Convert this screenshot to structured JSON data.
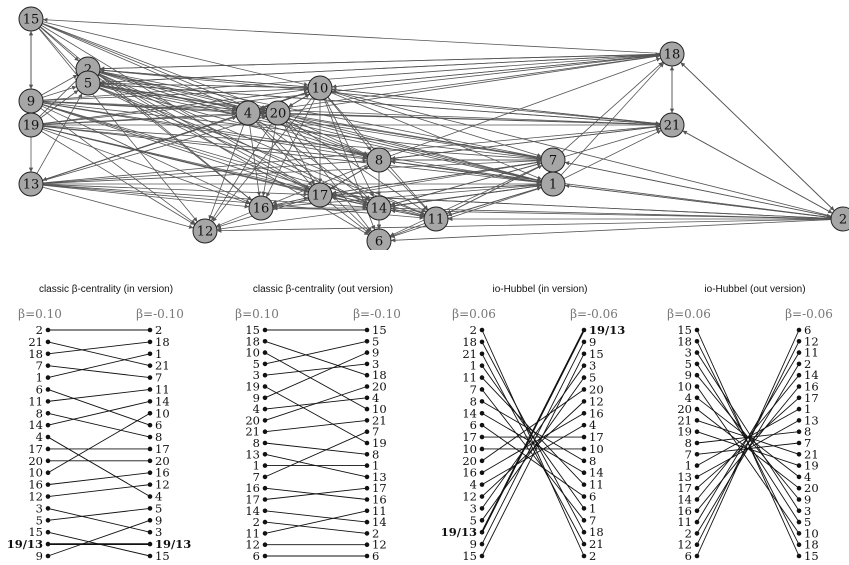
{
  "network": {
    "nodes": [
      "15",
      "2",
      "5",
      "9",
      "19",
      "13",
      "4",
      "20",
      "10",
      "12",
      "16",
      "17",
      "8",
      "14",
      "6",
      "11",
      "7",
      "1",
      "18",
      "21"
    ],
    "edges": [
      [
        "18",
        "15"
      ],
      [
        "15",
        "2"
      ],
      [
        "15",
        "5"
      ],
      [
        "15",
        "9"
      ],
      [
        "9",
        "15"
      ],
      [
        "15",
        "19"
      ],
      [
        "15",
        "4"
      ],
      [
        "15",
        "20"
      ],
      [
        "15",
        "10"
      ],
      [
        "15",
        "8"
      ],
      [
        "15",
        "17"
      ],
      [
        "15",
        "16"
      ],
      [
        "15",
        "12"
      ],
      [
        "2",
        "10"
      ],
      [
        "2",
        "4"
      ],
      [
        "2",
        "20"
      ],
      [
        "2",
        "18"
      ],
      [
        "2",
        "21"
      ],
      [
        "2",
        "8"
      ],
      [
        "2",
        "7"
      ],
      [
        "2",
        "1"
      ],
      [
        "2",
        "17"
      ],
      [
        "2",
        "16"
      ],
      [
        "2",
        "14"
      ],
      [
        "2",
        "11"
      ],
      [
        "2",
        "6"
      ],
      [
        "5",
        "10"
      ],
      [
        "5",
        "20"
      ],
      [
        "5",
        "4"
      ],
      [
        "5",
        "8"
      ],
      [
        "5",
        "7"
      ],
      [
        "5",
        "1"
      ],
      [
        "5",
        "17"
      ],
      [
        "5",
        "14"
      ],
      [
        "5",
        "11"
      ],
      [
        "5",
        "18"
      ],
      [
        "5",
        "21"
      ],
      [
        "5",
        "2"
      ],
      [
        "2",
        "5"
      ],
      [
        "9",
        "2"
      ],
      [
        "9",
        "5"
      ],
      [
        "9",
        "10"
      ],
      [
        "9",
        "4"
      ],
      [
        "9",
        "20"
      ],
      [
        "9",
        "18"
      ],
      [
        "9",
        "21"
      ],
      [
        "9",
        "8"
      ],
      [
        "9",
        "7"
      ],
      [
        "9",
        "1"
      ],
      [
        "9",
        "17"
      ],
      [
        "9",
        "16"
      ],
      [
        "9",
        "12"
      ],
      [
        "9",
        "14"
      ],
      [
        "9",
        "11"
      ],
      [
        "19",
        "5"
      ],
      [
        "19",
        "2"
      ],
      [
        "19",
        "10"
      ],
      [
        "19",
        "4"
      ],
      [
        "19",
        "20"
      ],
      [
        "19",
        "18"
      ],
      [
        "19",
        "21"
      ],
      [
        "19",
        "8"
      ],
      [
        "19",
        "7"
      ],
      [
        "19",
        "1"
      ],
      [
        "19",
        "17"
      ],
      [
        "19",
        "16"
      ],
      [
        "19",
        "12"
      ],
      [
        "19",
        "13"
      ],
      [
        "19",
        "14"
      ],
      [
        "19",
        "11"
      ],
      [
        "13",
        "5"
      ],
      [
        "13",
        "10"
      ],
      [
        "13",
        "4"
      ],
      [
        "13",
        "20"
      ],
      [
        "13",
        "8"
      ],
      [
        "13",
        "17"
      ],
      [
        "13",
        "16"
      ],
      [
        "13",
        "12"
      ],
      [
        "13",
        "14"
      ],
      [
        "13",
        "11"
      ],
      [
        "13",
        "1"
      ],
      [
        "13",
        "7"
      ],
      [
        "13",
        "21"
      ],
      [
        "4",
        "20"
      ],
      [
        "20",
        "4"
      ],
      [
        "4",
        "10"
      ],
      [
        "4",
        "16"
      ],
      [
        "4",
        "17"
      ],
      [
        "4",
        "12"
      ],
      [
        "4",
        "14"
      ],
      [
        "4",
        "8"
      ],
      [
        "4",
        "18"
      ],
      [
        "4",
        "21"
      ],
      [
        "4",
        "7"
      ],
      [
        "4",
        "1"
      ],
      [
        "4",
        "6"
      ],
      [
        "20",
        "10"
      ],
      [
        "20",
        "16"
      ],
      [
        "20",
        "17"
      ],
      [
        "20",
        "12"
      ],
      [
        "20",
        "14"
      ],
      [
        "20",
        "8"
      ],
      [
        "20",
        "18"
      ],
      [
        "20",
        "21"
      ],
      [
        "20",
        "7"
      ],
      [
        "20",
        "1"
      ],
      [
        "20",
        "6"
      ],
      [
        "20",
        "11"
      ],
      [
        "10",
        "20"
      ],
      [
        "10",
        "4"
      ],
      [
        "10",
        "8"
      ],
      [
        "10",
        "17"
      ],
      [
        "10",
        "16"
      ],
      [
        "10",
        "12"
      ],
      [
        "10",
        "14"
      ],
      [
        "10",
        "6"
      ],
      [
        "10",
        "11"
      ],
      [
        "10",
        "18"
      ],
      [
        "10",
        "21"
      ],
      [
        "10",
        "7"
      ],
      [
        "10",
        "1"
      ],
      [
        "10",
        "2"
      ],
      [
        "10",
        "5"
      ],
      [
        "10",
        "13"
      ],
      [
        "8",
        "17"
      ],
      [
        "8",
        "14"
      ],
      [
        "8",
        "6"
      ],
      [
        "8",
        "11"
      ],
      [
        "8",
        "16"
      ],
      [
        "8",
        "7"
      ],
      [
        "8",
        "1"
      ],
      [
        "8",
        "21"
      ],
      [
        "8",
        "18"
      ],
      [
        "7",
        "8"
      ],
      [
        "1",
        "8"
      ],
      [
        "7",
        "17"
      ],
      [
        "7",
        "14"
      ],
      [
        "7",
        "6"
      ],
      [
        "7",
        "11"
      ],
      [
        "7",
        "16"
      ],
      [
        "7",
        "21"
      ],
      [
        "7",
        "18"
      ],
      [
        "7",
        "1"
      ],
      [
        "1",
        "7"
      ],
      [
        "1",
        "17"
      ],
      [
        "1",
        "14"
      ],
      [
        "1",
        "6"
      ],
      [
        "1",
        "11"
      ],
      [
        "1",
        "16"
      ],
      [
        "1",
        "21"
      ],
      [
        "1",
        "18"
      ],
      [
        "1",
        "12"
      ],
      [
        "17",
        "14"
      ],
      [
        "17",
        "6"
      ],
      [
        "17",
        "12"
      ],
      [
        "17",
        "16"
      ],
      [
        "17",
        "8"
      ],
      [
        "17",
        "7"
      ],
      [
        "17",
        "1"
      ],
      [
        "14",
        "6"
      ],
      [
        "14",
        "11"
      ],
      [
        "14",
        "17"
      ],
      [
        "14",
        "7"
      ],
      [
        "14",
        "1"
      ],
      [
        "16",
        "17"
      ],
      [
        "16",
        "12"
      ],
      [
        "16",
        "14"
      ],
      [
        "11",
        "6"
      ],
      [
        "11",
        "14"
      ],
      [
        "11",
        "7"
      ],
      [
        "11",
        "1"
      ],
      [
        "18",
        "21"
      ],
      [
        "21",
        "18"
      ],
      [
        "18",
        "10"
      ],
      [
        "18",
        "5"
      ],
      [
        "18",
        "2"
      ],
      [
        "21",
        "10"
      ],
      [
        "21",
        "5"
      ],
      [
        "21",
        "8"
      ],
      [
        "2 ",
        "21"
      ],
      [
        "2 ",
        "18"
      ],
      [
        "2 ",
        "7"
      ],
      [
        "2 ",
        "1"
      ],
      [
        "2 ",
        "8"
      ],
      [
        "2 ",
        "17"
      ],
      [
        "2 ",
        "14"
      ],
      [
        "2 ",
        "11"
      ],
      [
        "2 ",
        "6"
      ],
      [
        "2 ",
        "16"
      ],
      [
        "2 ",
        "12"
      ],
      [
        "2 ",
        "10"
      ],
      [
        "18",
        "2 "
      ],
      [
        "21",
        "2 "
      ],
      [
        "1",
        "2 "
      ],
      [
        "7",
        "2 "
      ],
      [
        "17",
        "2 "
      ]
    ]
  },
  "rankings": [
    {
      "title": "classic β-centrality (in version)",
      "left_label": "β=0.10",
      "right_label": "β=-0.10",
      "left": [
        "2",
        "21",
        "18",
        "7",
        "1",
        "6",
        "11",
        "8",
        "14",
        "4",
        "17",
        "20",
        "10",
        "16",
        "12",
        "3",
        "5",
        "15",
        "19/13",
        "9"
      ],
      "right": [
        "2",
        "18",
        "1",
        "21",
        "7",
        "11",
        "14",
        "10",
        "6",
        "8",
        "17",
        "20",
        "16",
        "12",
        "4",
        "5",
        "9",
        "3",
        "19/13",
        "15"
      ],
      "bold": [
        "19/13"
      ]
    },
    {
      "title": "classic β-centrality (out version)",
      "left_label": "β=0.10",
      "right_label": "β=-0.10",
      "left": [
        "15",
        "18",
        "10",
        "5",
        "3",
        "19",
        "9",
        "4",
        "20",
        "21",
        "8",
        "13",
        "1",
        "7",
        "16",
        "17",
        "14",
        "2",
        "11",
        "12",
        "6"
      ],
      "right": [
        "15",
        "5",
        "9",
        "3",
        "18",
        "20",
        "4",
        "10",
        "21",
        "7",
        "19",
        "8",
        "1",
        "13",
        "17",
        "16",
        "11",
        "14",
        "2",
        "12",
        "6"
      ],
      "bold": []
    },
    {
      "title": "io-Hubbel (in version)",
      "left_label": "β=0.06",
      "right_label": "β=-0.06",
      "left": [
        "2",
        "18",
        "21",
        "1",
        "11",
        "7",
        "8",
        "14",
        "6",
        "17",
        "10",
        "20",
        "16",
        "4",
        "12",
        "3",
        "5",
        "19/13",
        "9",
        "15"
      ],
      "right": [
        "19/13",
        "9",
        "15",
        "3",
        "5",
        "20",
        "12",
        "16",
        "4",
        "17",
        "10",
        "8",
        "14",
        "11",
        "6",
        "1",
        "7",
        "18",
        "21",
        "2"
      ],
      "bold": [
        "19/13"
      ]
    },
    {
      "title": "io-Hubbel (out version)",
      "left_label": "β=0.06",
      "right_label": "β=-0.06",
      "left": [
        "15",
        "18",
        "3",
        "5",
        "9",
        "10",
        "4",
        "20",
        "21",
        "19",
        "8",
        "7",
        "1",
        "13",
        "17",
        "14",
        "16",
        "11",
        "2",
        "12",
        "6"
      ],
      "right": [
        "6",
        "12",
        "11",
        "2",
        "14",
        "16",
        "17",
        "1",
        "13",
        "8",
        "7",
        "21",
        "19",
        "4",
        "20",
        "9",
        "3",
        "5",
        "10",
        "18",
        "15"
      ],
      "bold": []
    }
  ]
}
